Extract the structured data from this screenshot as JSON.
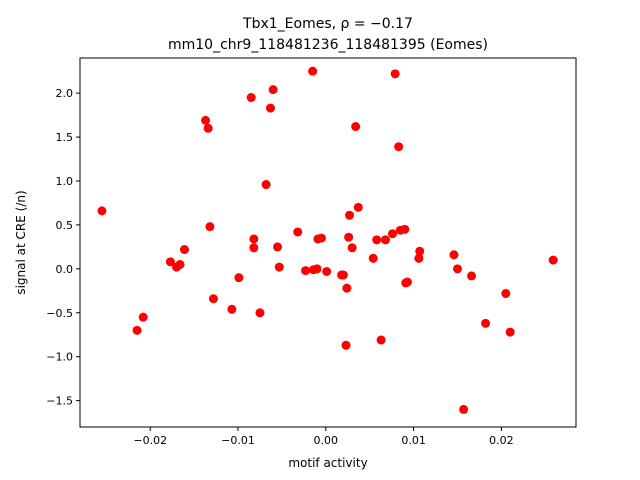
{
  "chart_data": {
    "type": "scatter",
    "title_line1": "Tbx1_Eomes, ρ = −0.17",
    "title_line2": "mm10_chr9_118481236_118481395 (Eomes)",
    "xlabel": "motif activity",
    "ylabel": "signal at CRE (/n)",
    "xlim": [
      -0.028,
      0.0285
    ],
    "ylim": [
      -1.8,
      2.4
    ],
    "x_ticks": [
      -0.02,
      -0.01,
      0.0,
      0.01,
      0.02
    ],
    "x_tick_labels": [
      "−0.02",
      "−0.01",
      "0.00",
      "0.01",
      "0.02"
    ],
    "y_ticks": [
      -1.5,
      -1.0,
      -0.5,
      0.0,
      0.5,
      1.0,
      1.5,
      2.0
    ],
    "y_tick_labels": [
      "−1.5",
      "−1.0",
      "−0.5",
      "0.0",
      "0.5",
      "1.0",
      "1.5",
      "2.0"
    ],
    "grid": false,
    "marker_color": "#ff0000",
    "points": [
      {
        "x": -0.0255,
        "y": 0.66
      },
      {
        "x": -0.0215,
        "y": -0.7
      },
      {
        "x": -0.0208,
        "y": -0.55
      },
      {
        "x": -0.0177,
        "y": 0.08
      },
      {
        "x": -0.017,
        "y": 0.02
      },
      {
        "x": -0.0166,
        "y": 0.05
      },
      {
        "x": -0.0161,
        "y": 0.22
      },
      {
        "x": -0.0137,
        "y": 1.69
      },
      {
        "x": -0.0134,
        "y": 1.6
      },
      {
        "x": -0.0132,
        "y": 0.48
      },
      {
        "x": -0.0128,
        "y": -0.34
      },
      {
        "x": -0.0107,
        "y": -0.46
      },
      {
        "x": -0.0099,
        "y": -0.1
      },
      {
        "x": -0.0085,
        "y": 1.95
      },
      {
        "x": -0.0082,
        "y": 0.34
      },
      {
        "x": -0.0082,
        "y": 0.24
      },
      {
        "x": -0.0075,
        "y": -0.5
      },
      {
        "x": -0.0068,
        "y": 0.96
      },
      {
        "x": -0.0063,
        "y": 1.83
      },
      {
        "x": -0.006,
        "y": 2.04
      },
      {
        "x": -0.0055,
        "y": 0.25
      },
      {
        "x": -0.0053,
        "y": 0.02
      },
      {
        "x": -0.0032,
        "y": 0.42
      },
      {
        "x": -0.0023,
        "y": -0.02
      },
      {
        "x": -0.0015,
        "y": 2.25
      },
      {
        "x": -0.0014,
        "y": -0.01
      },
      {
        "x": -0.001,
        "y": 0.0
      },
      {
        "x": -0.0009,
        "y": 0.34
      },
      {
        "x": -0.0005,
        "y": 0.35
      },
      {
        "x": 0.0001,
        "y": -0.03
      },
      {
        "x": 0.0018,
        "y": -0.07
      },
      {
        "x": 0.002,
        "y": -0.07
      },
      {
        "x": 0.0023,
        "y": -0.87
      },
      {
        "x": 0.0024,
        "y": -0.22
      },
      {
        "x": 0.0026,
        "y": 0.36
      },
      {
        "x": 0.0027,
        "y": 0.61
      },
      {
        "x": 0.003,
        "y": 0.24
      },
      {
        "x": 0.0034,
        "y": 1.62
      },
      {
        "x": 0.0037,
        "y": 0.7
      },
      {
        "x": 0.0054,
        "y": 0.12
      },
      {
        "x": 0.0058,
        "y": 0.33
      },
      {
        "x": 0.0063,
        "y": -0.81
      },
      {
        "x": 0.0068,
        "y": 0.33
      },
      {
        "x": 0.0076,
        "y": 0.4
      },
      {
        "x": 0.0079,
        "y": 2.22
      },
      {
        "x": 0.0083,
        "y": 1.39
      },
      {
        "x": 0.0085,
        "y": 0.44
      },
      {
        "x": 0.009,
        "y": 0.45
      },
      {
        "x": 0.0091,
        "y": -0.16
      },
      {
        "x": 0.0093,
        "y": -0.15
      },
      {
        "x": 0.0106,
        "y": 0.12
      },
      {
        "x": 0.0107,
        "y": 0.2
      },
      {
        "x": 0.0146,
        "y": 0.16
      },
      {
        "x": 0.015,
        "y": 0.0
      },
      {
        "x": 0.0157,
        "y": -1.6
      },
      {
        "x": 0.0166,
        "y": -0.08
      },
      {
        "x": 0.0182,
        "y": -0.62
      },
      {
        "x": 0.0205,
        "y": -0.28
      },
      {
        "x": 0.021,
        "y": -0.72
      },
      {
        "x": 0.0259,
        "y": 0.1
      }
    ]
  }
}
